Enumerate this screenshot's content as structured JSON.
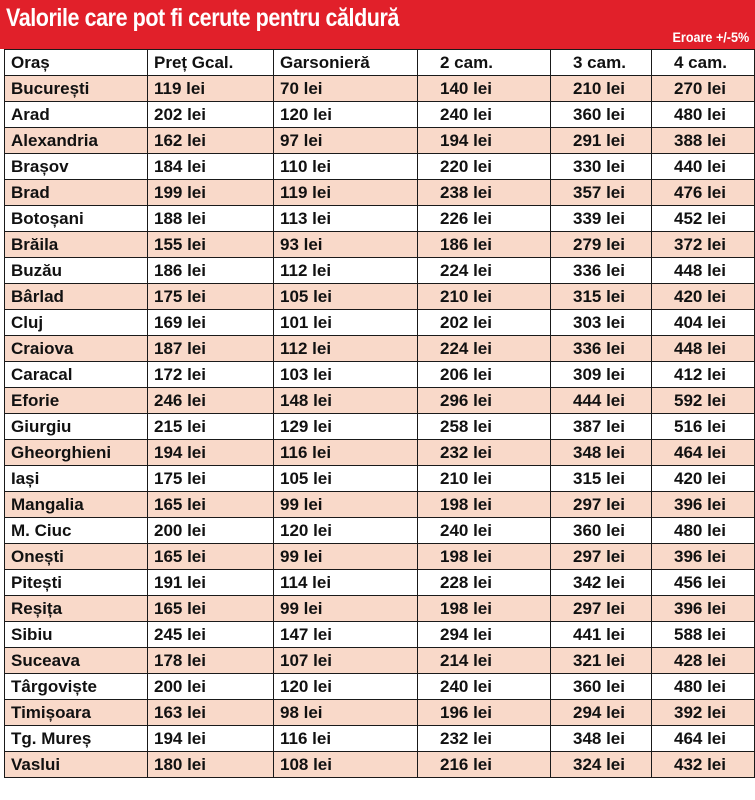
{
  "title": "Valorile care pot fi cerute pentru căldură",
  "note": "Eroare +/-5%",
  "colors": {
    "header": "#e1202a",
    "shaded_row": "#f9d9c9"
  },
  "chart_data": {
    "type": "table",
    "title": "Valorile care pot fi cerute pentru căldură",
    "note": "Eroare +/-5%",
    "columns": [
      "Oraș",
      "Preț Gcal.",
      "Garsonieră",
      "2 cam.",
      "3 cam.",
      "4 cam."
    ],
    "rows": [
      [
        "București",
        "119 lei",
        "70 lei",
        "140 lei",
        "210 lei",
        "270 lei"
      ],
      [
        "Arad",
        "202 lei",
        "120 lei",
        "240 lei",
        "360 lei",
        "480 lei"
      ],
      [
        "Alexandria",
        "162 lei",
        "97 lei",
        "194 lei",
        "291 lei",
        "388 lei"
      ],
      [
        "Brașov",
        "184 lei",
        "110 lei",
        "220 lei",
        "330 lei",
        "440 lei"
      ],
      [
        "Brad",
        "199 lei",
        "119 lei",
        "238 lei",
        "357 lei",
        "476 lei"
      ],
      [
        "Botoșani",
        "188 lei",
        "113 lei",
        "226 lei",
        "339 lei",
        "452 lei"
      ],
      [
        "Brăila",
        "155 lei",
        "93 lei",
        "186 lei",
        "279 lei",
        "372 lei"
      ],
      [
        "Buzău",
        "186 lei",
        "112 lei",
        "224 lei",
        "336 lei",
        "448 lei"
      ],
      [
        "Bârlad",
        "175 lei",
        "105 lei",
        "210 lei",
        "315 lei",
        "420 lei"
      ],
      [
        "Cluj",
        "169 lei",
        "101 lei",
        "202 lei",
        "303 lei",
        "404 lei"
      ],
      [
        "Craiova",
        "187 lei",
        "112 lei",
        "224 lei",
        "336 lei",
        "448 lei"
      ],
      [
        "Caracal",
        "172 lei",
        "103 lei",
        "206 lei",
        "309 lei",
        "412 lei"
      ],
      [
        "Eforie",
        "246 lei",
        "148 lei",
        "296 lei",
        "444 lei",
        "592 lei"
      ],
      [
        "Giurgiu",
        "215 lei",
        "129 lei",
        "258 lei",
        "387 lei",
        "516 lei"
      ],
      [
        "Gheorghieni",
        "194 lei",
        "116 lei",
        "232 lei",
        "348 lei",
        "464 lei"
      ],
      [
        "Iași",
        "175 lei",
        "105 lei",
        "210 lei",
        "315 lei",
        "420 lei"
      ],
      [
        "Mangalia",
        "165 lei",
        "99 lei",
        "198 lei",
        "297 lei",
        "396 lei"
      ],
      [
        "M. Ciuc",
        "200 lei",
        "120 lei",
        "240 lei",
        "360 lei",
        "480 lei"
      ],
      [
        "Onești",
        "165 lei",
        "99 lei",
        "198 lei",
        "297 lei",
        "396 lei"
      ],
      [
        "Pitești",
        "191 lei",
        "114 lei",
        "228 lei",
        "342 lei",
        "456 lei"
      ],
      [
        "Reșița",
        "165 lei",
        "99 lei",
        "198 lei",
        "297 lei",
        "396 lei"
      ],
      [
        "Sibiu",
        "245 lei",
        "147 lei",
        "294 lei",
        "441 lei",
        "588 lei"
      ],
      [
        "Suceava",
        "178 lei",
        "107 lei",
        "214 lei",
        "321 lei",
        "428 lei"
      ],
      [
        "Târgoviște",
        "200 lei",
        "120 lei",
        "240 lei",
        "360 lei",
        "480 lei"
      ],
      [
        "Timișoara",
        "163 lei",
        "98 lei",
        "196 lei",
        "294 lei",
        "392 lei"
      ],
      [
        "Tg. Mureș",
        "194 lei",
        "116 lei",
        "232 lei",
        "348 lei",
        "464 lei"
      ],
      [
        "Vaslui",
        "180 lei",
        "108 lei",
        "216 lei",
        "324 lei",
        "432 lei"
      ]
    ]
  }
}
